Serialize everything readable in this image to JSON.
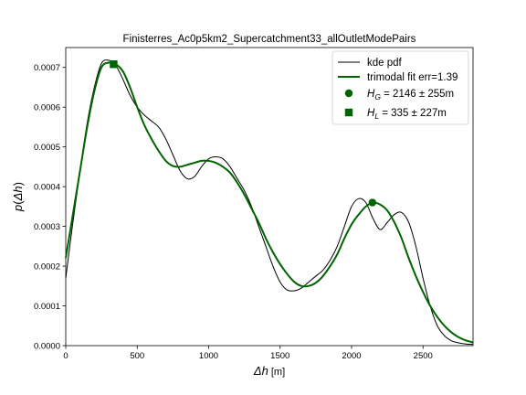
{
  "chart_data": {
    "type": "line",
    "title": "Finisterres_Ac0p5km2_Supercatchment33_allOutletModePairs",
    "xlabel": "Δh [m]",
    "ylabel": "p(Δh)",
    "xlim": [
      0,
      2850
    ],
    "ylim": [
      0,
      0.00075
    ],
    "grid": false,
    "legend_position": "top-right",
    "x_ticks": [
      {
        "value": 0,
        "label": "0"
      },
      {
        "value": 500,
        "label": "500"
      },
      {
        "value": 1000,
        "label": "1000"
      },
      {
        "value": 1500,
        "label": "1500"
      },
      {
        "value": 2000,
        "label": "2000"
      },
      {
        "value": 2500,
        "label": "2500"
      }
    ],
    "y_ticks": [
      {
        "value": 0,
        "label": "0.0000"
      },
      {
        "value": 0.0001,
        "label": "0.0001"
      },
      {
        "value": 0.0002,
        "label": "0.0002"
      },
      {
        "value": 0.0003,
        "label": "0.0003"
      },
      {
        "value": 0.0004,
        "label": "0.0004"
      },
      {
        "value": 0.0005,
        "label": "0.0005"
      },
      {
        "value": 0.0006,
        "label": "0.0006"
      },
      {
        "value": 0.0007,
        "label": "0.0007"
      }
    ],
    "series": [
      {
        "name": "kde pdf",
        "color": "#000000",
        "x": [
          0,
          50,
          100,
          150,
          200,
          250,
          300,
          350,
          400,
          450,
          500,
          550,
          600,
          650,
          700,
          750,
          800,
          850,
          900,
          950,
          1000,
          1050,
          1100,
          1150,
          1200,
          1250,
          1300,
          1350,
          1400,
          1450,
          1500,
          1550,
          1600,
          1650,
          1700,
          1750,
          1800,
          1850,
          1900,
          1950,
          2000,
          2050,
          2100,
          2150,
          2200,
          2250,
          2300,
          2350,
          2400,
          2450,
          2500,
          2550,
          2600,
          2650,
          2700,
          2750,
          2800,
          2850
        ],
        "y": [
          0.00017,
          0.00031,
          0.00044,
          0.00056,
          0.00065,
          0.00071,
          0.000718,
          0.000705,
          0.00067,
          0.00063,
          0.0006,
          0.00058,
          0.000565,
          0.00055,
          0.00052,
          0.00048,
          0.00044,
          0.00042,
          0.000425,
          0.00045,
          0.00047,
          0.000475,
          0.00047,
          0.00045,
          0.00042,
          0.00039,
          0.00035,
          0.0003,
          0.00025,
          0.0002,
          0.00016,
          0.00014,
          0.000138,
          0.000145,
          0.00016,
          0.000175,
          0.00019,
          0.000215,
          0.00025,
          0.0003,
          0.00035,
          0.00037,
          0.00036,
          0.00032,
          0.000292,
          0.00031,
          0.00033,
          0.000335,
          0.00031,
          0.00025,
          0.00017,
          0.0001,
          5e-05,
          2.5e-05,
          1.2e-05,
          7e-06,
          4e-06,
          3e-06
        ]
      },
      {
        "name": "trimodal fit err=1.39",
        "color": "#006400",
        "x": [
          0,
          50,
          100,
          150,
          200,
          250,
          300,
          350,
          400,
          450,
          500,
          550,
          600,
          650,
          700,
          750,
          800,
          850,
          900,
          950,
          1000,
          1050,
          1100,
          1150,
          1200,
          1250,
          1300,
          1350,
          1400,
          1450,
          1500,
          1550,
          1600,
          1650,
          1700,
          1750,
          1800,
          1850,
          1900,
          1950,
          2000,
          2050,
          2100,
          2150,
          2200,
          2250,
          2300,
          2350,
          2400,
          2450,
          2500,
          2550,
          2600,
          2650,
          2700,
          2750,
          2800,
          2850
        ],
        "y": [
          0.00022,
          0.00033,
          0.00044,
          0.00055,
          0.00064,
          0.0007,
          0.000712,
          0.000708,
          0.00069,
          0.00065,
          0.0006,
          0.000555,
          0.00052,
          0.00049,
          0.000465,
          0.000452,
          0.00045,
          0.000455,
          0.00046,
          0.000465,
          0.000465,
          0.00046,
          0.00045,
          0.000435,
          0.00041,
          0.00038,
          0.000345,
          0.00031,
          0.00027,
          0.000235,
          0.000205,
          0.00018,
          0.00016,
          0.00015,
          0.00015,
          0.000158,
          0.000175,
          0.0002,
          0.00023,
          0.00027,
          0.000305,
          0.00033,
          0.00035,
          0.00036,
          0.000355,
          0.00034,
          0.00031,
          0.00027,
          0.00022,
          0.000175,
          0.000135,
          0.0001,
          7.2e-05,
          5e-05,
          3.3e-05,
          2.1e-05,
          1.3e-05,
          8e-06
        ]
      }
    ],
    "markers": [
      {
        "name": "H_G",
        "label_math": "H",
        "label_sub": "G",
        "label_rest": " = 2146 ± 255m",
        "x": 2146,
        "y": 0.00036,
        "shape": "circle",
        "color": "#006400"
      },
      {
        "name": "H_L",
        "label_math": "H",
        "label_sub": "L",
        "label_rest": " = 335 ± 227m",
        "x": 335,
        "y": 0.000708,
        "shape": "square",
        "color": "#006400"
      }
    ]
  }
}
